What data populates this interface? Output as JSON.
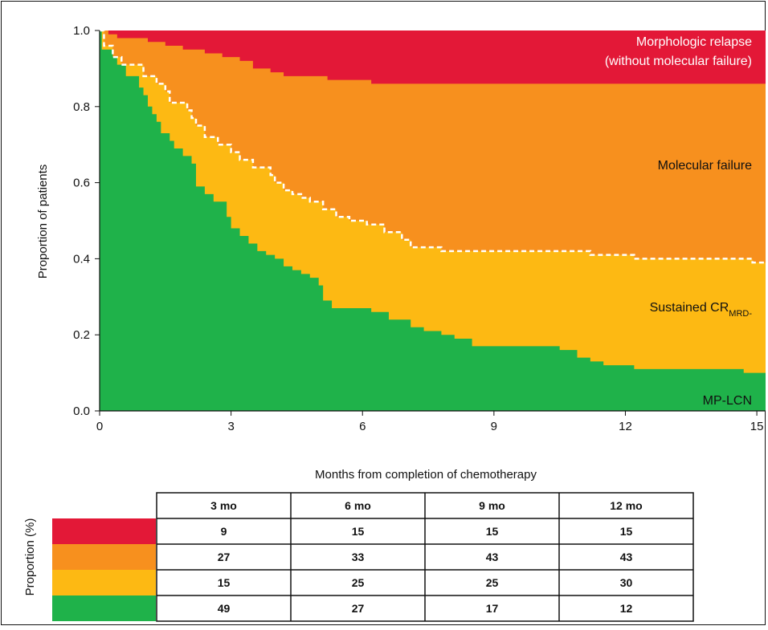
{
  "chart_data": {
    "type": "area",
    "xlabel": "Months from completion of chemotherapy",
    "ylabel": "Proportion of patients",
    "xlim": [
      0,
      15.2
    ],
    "ylim": [
      0,
      1
    ],
    "x_ticks": [
      "0",
      "3",
      "6",
      "9",
      "12",
      "15"
    ],
    "y_ticks": [
      "0.0",
      "0.2",
      "0.4",
      "0.6",
      "0.8",
      "1.0"
    ],
    "colors": {
      "morphologic_relapse": "#e31837",
      "molecular_failure": "#f7901e",
      "sustained_cr": "#fdb913",
      "mp_lcn": "#1fb24a",
      "dashed_line": "#ffffff"
    },
    "annotations": {
      "morphologic_relapse_line1": "Morphologic relapse",
      "morphologic_relapse_line2": "(without molecular failure)",
      "molecular_failure": "Molecular failure",
      "sustained_cr_main": "Sustained CR",
      "sustained_cr_sub": "MRD-",
      "mp_lcn": "MP-LCN"
    },
    "series": [
      {
        "name": "MP-LCN",
        "x": [
          0,
          0.05,
          0.3,
          0.4,
          0.6,
          0.9,
          1.0,
          1.1,
          1.2,
          1.3,
          1.4,
          1.6,
          1.7,
          1.9,
          2.1,
          2.2,
          2.4,
          2.6,
          2.9,
          3.0,
          3.2,
          3.4,
          3.6,
          3.8,
          4.0,
          4.2,
          4.4,
          4.6,
          4.8,
          5.0,
          5.1,
          5.3,
          6.2,
          6.6,
          7.1,
          7.4,
          7.8,
          8.1,
          8.5,
          10.5,
          10.9,
          11.2,
          11.5,
          12.2,
          14.7,
          15.2
        ],
        "y": [
          1.0,
          0.95,
          0.93,
          0.91,
          0.88,
          0.85,
          0.83,
          0.8,
          0.78,
          0.76,
          0.73,
          0.71,
          0.69,
          0.67,
          0.65,
          0.59,
          0.57,
          0.55,
          0.51,
          0.48,
          0.46,
          0.44,
          0.42,
          0.41,
          0.4,
          0.38,
          0.37,
          0.36,
          0.35,
          0.33,
          0.29,
          0.27,
          0.26,
          0.24,
          0.22,
          0.21,
          0.2,
          0.19,
          0.17,
          0.16,
          0.14,
          0.13,
          0.12,
          0.11,
          0.1,
          0.09
        ]
      },
      {
        "name": "Sustained CRMRD-",
        "x": [
          0,
          0.1,
          0.3,
          0.5,
          1.0,
          1.3,
          1.5,
          1.6,
          2.0,
          2.1,
          2.2,
          2.4,
          2.7,
          3.0,
          3.2,
          3.5,
          3.9,
          4.0,
          4.2,
          4.4,
          4.6,
          4.8,
          5.1,
          5.4,
          5.7,
          6.1,
          6.5,
          6.9,
          7.1,
          7.4,
          7.8,
          8.0,
          11.2,
          12.2,
          14.9,
          15.2
        ],
        "y": [
          1.0,
          0.96,
          0.93,
          0.91,
          0.88,
          0.86,
          0.84,
          0.81,
          0.79,
          0.77,
          0.75,
          0.72,
          0.7,
          0.68,
          0.66,
          0.64,
          0.62,
          0.6,
          0.58,
          0.57,
          0.56,
          0.55,
          0.53,
          0.51,
          0.5,
          0.49,
          0.47,
          0.45,
          0.43,
          0.43,
          0.42,
          0.42,
          0.41,
          0.4,
          0.39,
          0.39
        ]
      },
      {
        "name": "Molecular failure",
        "x": [
          0,
          0.2,
          0.4,
          0.8,
          1.1,
          1.5,
          1.9,
          2.4,
          2.8,
          3.2,
          3.5,
          3.9,
          4.2,
          5.2,
          6.2,
          15.2
        ],
        "y": [
          1.0,
          0.99,
          0.98,
          0.98,
          0.97,
          0.96,
          0.95,
          0.94,
          0.93,
          0.92,
          0.9,
          0.89,
          0.88,
          0.87,
          0.86,
          0.85
        ]
      }
    ],
    "table": {
      "y_label": "Proportion (%)",
      "columns": [
        "3 mo",
        "6 mo",
        "9 mo",
        "12 mo"
      ],
      "rows": [
        {
          "color": "#e31837",
          "values": [
            "9",
            "15",
            "15",
            "15"
          ]
        },
        {
          "color": "#f7901e",
          "values": [
            "27",
            "33",
            "43",
            "43"
          ]
        },
        {
          "color": "#fdb913",
          "values": [
            "15",
            "25",
            "25",
            "30"
          ]
        },
        {
          "color": "#1fb24a",
          "values": [
            "49",
            "27",
            "17",
            "12"
          ]
        }
      ]
    }
  }
}
